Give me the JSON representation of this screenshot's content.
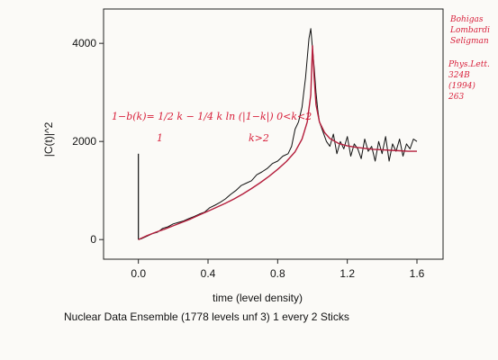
{
  "chart_data": {
    "type": "line",
    "caption": "Nuclear Data Ensemble (1778 levels unf 3) 1 every 2 Sticks",
    "xlabel": "time (level density)",
    "ylabel": "|C(t)|^2",
    "xlim": [
      -0.2,
      1.75
    ],
    "ylim": [
      -400,
      4700
    ],
    "xticks": [
      "0.0",
      "0.4",
      "0.8",
      "1.2",
      "1.6"
    ],
    "xtick_values": [
      0.0,
      0.4,
      0.8,
      1.2,
      1.6
    ],
    "yticks": [
      "0",
      "2000",
      "4000"
    ],
    "ytick_values": [
      0,
      2000,
      4000
    ],
    "grid": false,
    "series": [
      {
        "color": "#111111",
        "x": [
          0.0,
          0.02,
          0.05,
          0.08,
          0.11,
          0.14,
          0.17,
          0.2,
          0.23,
          0.26,
          0.29,
          0.32,
          0.35,
          0.38,
          0.41,
          0.44,
          0.47,
          0.5,
          0.53,
          0.56,
          0.59,
          0.62,
          0.65,
          0.68,
          0.71,
          0.74,
          0.77,
          0.8,
          0.83,
          0.86,
          0.88,
          0.9,
          0.92,
          0.94,
          0.95,
          0.96,
          0.97,
          0.98,
          0.99,
          1.0,
          1.01,
          1.02,
          1.03,
          1.04,
          1.06,
          1.08,
          1.1,
          1.12,
          1.14,
          1.16,
          1.18,
          1.2,
          1.22,
          1.24,
          1.26,
          1.28,
          1.3,
          1.32,
          1.34,
          1.36,
          1.38,
          1.4,
          1.42,
          1.44,
          1.46,
          1.48,
          1.5,
          1.52,
          1.54,
          1.56,
          1.58,
          1.6
        ],
        "y": [
          0,
          20,
          70,
          120,
          150,
          230,
          260,
          320,
          350,
          380,
          430,
          470,
          520,
          560,
          650,
          700,
          760,
          830,
          920,
          1000,
          1100,
          1150,
          1200,
          1320,
          1380,
          1450,
          1550,
          1600,
          1700,
          1750,
          1900,
          2250,
          2400,
          2700,
          3000,
          3300,
          3700,
          4100,
          4300,
          3900,
          3500,
          3000,
          2650,
          2400,
          2200,
          2000,
          1900,
          2150,
          1750,
          2000,
          1850,
          2100,
          1700,
          1950,
          1850,
          1650,
          2050,
          1800,
          1900,
          1600,
          2000,
          1750,
          2100,
          1600,
          1950,
          1800,
          2050,
          1700,
          1950,
          1850,
          2050,
          2000
        ]
      },
      {
        "color": "#b41e3c",
        "x": [
          0.0,
          0.05,
          0.1,
          0.15,
          0.2,
          0.25,
          0.3,
          0.35,
          0.4,
          0.45,
          0.5,
          0.55,
          0.6,
          0.65,
          0.7,
          0.75,
          0.8,
          0.85,
          0.9,
          0.94,
          0.97,
          0.99,
          1.0,
          1.01,
          1.02,
          1.04,
          1.07,
          1.1,
          1.15,
          1.2,
          1.25,
          1.3,
          1.35,
          1.4,
          1.45,
          1.5,
          1.55,
          1.6
        ],
        "y": [
          0,
          80,
          150,
          210,
          280,
          350,
          420,
          500,
          580,
          660,
          740,
          830,
          930,
          1040,
          1160,
          1290,
          1430,
          1590,
          1790,
          2050,
          2400,
          2950,
          3950,
          3300,
          2750,
          2400,
          2180,
          2060,
          1960,
          1910,
          1880,
          1860,
          1840,
          1830,
          1820,
          1810,
          1800,
          1800
        ]
      }
    ],
    "stick": {
      "x": 0.0,
      "y_top": 1750,
      "color": "#111111"
    },
    "annotations": {
      "formula": "1−b(k)= 1/2 k − 1/4 k ln (|1−k|)   0<k<2",
      "formula2_left": "1",
      "formula2_right": "k>2",
      "citation": [
        "Bohigas",
        "Lombardi",
        "Seligman",
        "Phys.Lett.",
        "324B",
        "(1994)",
        "263"
      ]
    }
  }
}
